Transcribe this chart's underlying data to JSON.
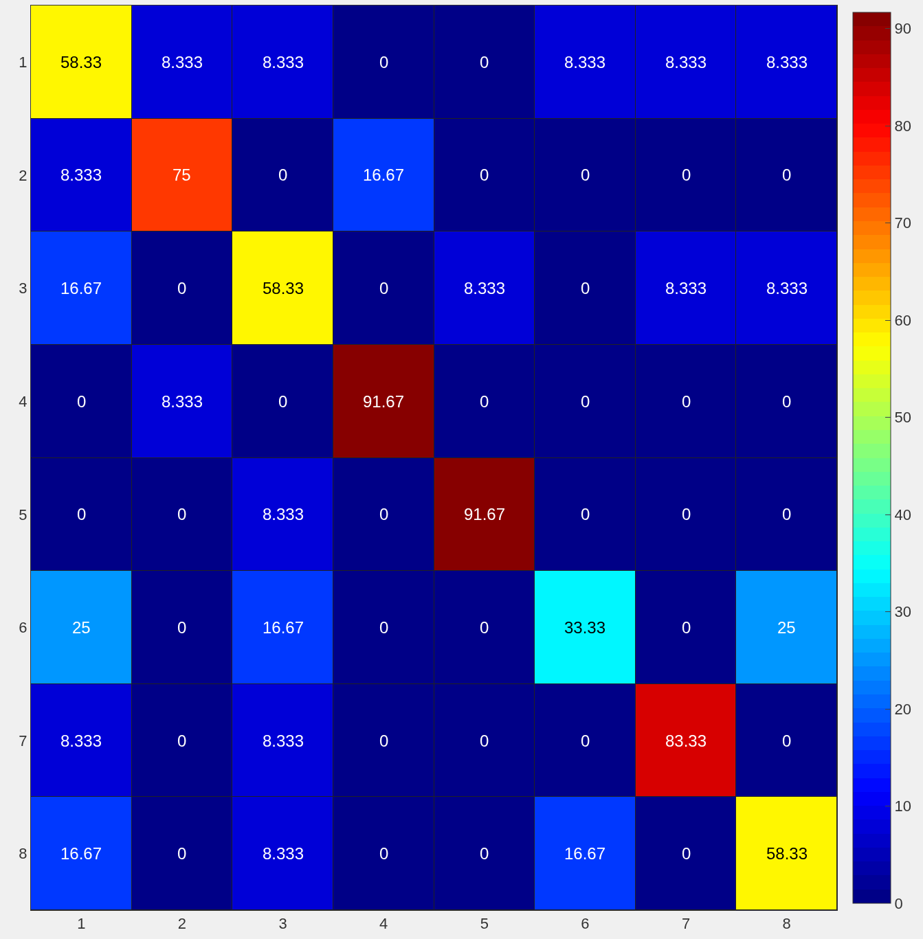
{
  "chart_data": {
    "type": "heatmap",
    "categories": [
      "1",
      "2",
      "3",
      "4",
      "5",
      "6",
      "7",
      "8"
    ],
    "y_categories": [
      "1",
      "2",
      "3",
      "4",
      "5",
      "6",
      "7",
      "8"
    ],
    "cells": [
      [
        58.33,
        8.333,
        8.333,
        0,
        0,
        8.333,
        8.333,
        8.333
      ],
      [
        8.333,
        75,
        0,
        16.67,
        0,
        0,
        0,
        0
      ],
      [
        16.67,
        0,
        58.33,
        0,
        8.333,
        0,
        8.333,
        8.333
      ],
      [
        0,
        8.333,
        0,
        91.67,
        0,
        0,
        0,
        0
      ],
      [
        0,
        0,
        8.333,
        0,
        91.67,
        0,
        0,
        0
      ],
      [
        25,
        0,
        16.67,
        0,
        0,
        33.33,
        0,
        25
      ],
      [
        8.333,
        0,
        8.333,
        0,
        0,
        0,
        83.33,
        0
      ],
      [
        16.67,
        0,
        8.333,
        0,
        0,
        16.67,
        0,
        58.33
      ]
    ],
    "clim": [
      0,
      91.67
    ],
    "cticks": [
      0,
      10,
      20,
      30,
      40,
      50,
      60,
      70,
      80,
      90
    ],
    "data_labels": true
  }
}
